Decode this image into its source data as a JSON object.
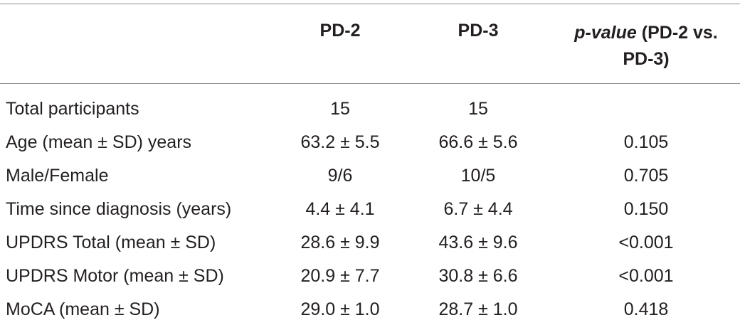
{
  "header": {
    "col1": "PD-2",
    "col2": "PD-3",
    "col3": {
      "italic": "p-value",
      "rest": "(PD-2 vs. PD-3)"
    }
  },
  "table": {
    "rows": [
      [
        "Total participants",
        "15",
        "15"
      ],
      [
        "Age (mean ± SD) years",
        "63.2 ± 5.5",
        "66.6 ± 5.6",
        "0.105"
      ],
      [
        "Male/Female",
        "9/6",
        "10/5",
        "0.705"
      ],
      [
        "Time since diagnosis (years)",
        "4.4 ± 4.1",
        "6.7 ± 4.4",
        "0.150"
      ],
      [
        "UPDRS Total (mean ± SD)",
        "28.6 ± 9.9",
        "43.6 ± 9.6",
        "<0.001"
      ],
      [
        "UPDRS Motor (mean ± SD)",
        "20.9 ± 7.7",
        "30.8 ± 6.6",
        "<0.001"
      ],
      [
        "MoCA (mean ± SD)",
        "29.0 ± 1.0",
        "28.7 ± 1.0",
        "0.418"
      ]
    ]
  }
}
